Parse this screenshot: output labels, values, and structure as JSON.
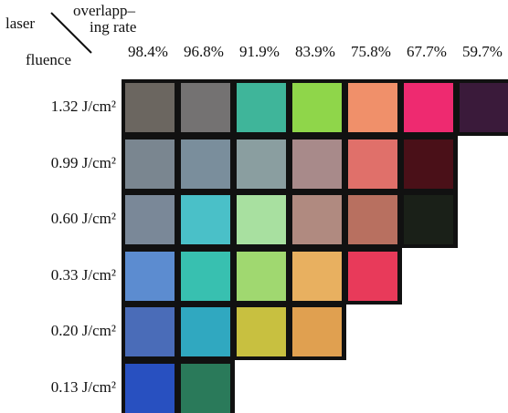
{
  "header": {
    "laser": "laser",
    "rate_line1": "overlapp–",
    "rate_line2": "ing rate",
    "fluence": "fluence"
  },
  "columns": [
    "98.4%",
    "96.8%",
    "91.9%",
    "83.9%",
    "75.8%",
    "67.7%",
    "59.7%"
  ],
  "rows": [
    {
      "label": "1.32 J/cm²",
      "colors": [
        "#6b6660",
        "#747272",
        "#3fb59a",
        "#8fd64a",
        "#f0906a",
        "#ee2a70",
        "#3a1a3a"
      ]
    },
    {
      "label": "0.99 J/cm²",
      "colors": [
        "#7a8690",
        "#7a8e9c",
        "#8a9ea0",
        "#a88a8a",
        "#e0706a",
        "#4a1018"
      ]
    },
    {
      "label": "0.60 J/cm²",
      "colors": [
        "#7a8898",
        "#4ac0c8",
        "#a8e0a0",
        "#b08a80",
        "#b87060",
        "#1a2018"
      ]
    },
    {
      "label": "0.33 J/cm²",
      "colors": [
        "#5c8cd0",
        "#38c0b0",
        "#a0d870",
        "#e8b060",
        "#e83a5a"
      ]
    },
    {
      "label": "0.20 J/cm²",
      "colors": [
        "#4a6cb8",
        "#30a8c0",
        "#c8c040",
        "#e0a050"
      ]
    },
    {
      "label": "0.13 J/cm²",
      "colors": [
        "#2850c0",
        "#2a7a5a"
      ]
    }
  ]
}
